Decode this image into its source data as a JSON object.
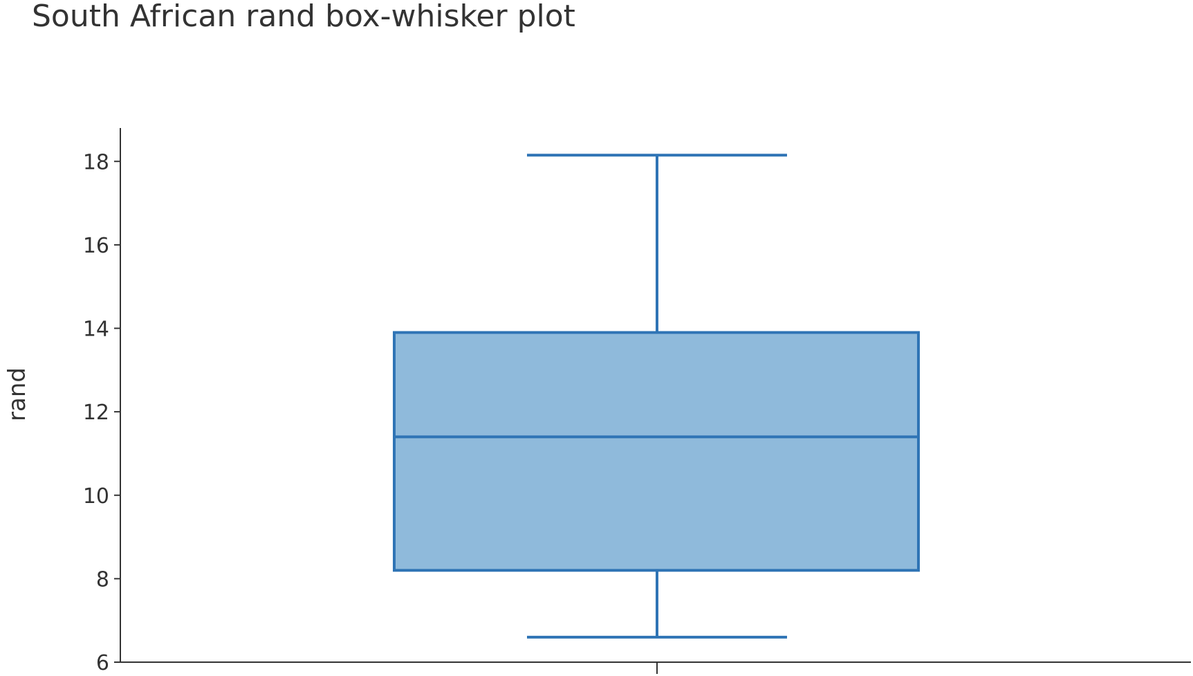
{
  "chart_data": {
    "type": "box",
    "title": "South African rand box-whisker plot",
    "xlabel": "",
    "ylabel": "rand",
    "ylim": [
      6,
      18.8
    ],
    "yticks": [
      6,
      8,
      10,
      12,
      14,
      16,
      18
    ],
    "grid": false,
    "legend": "none",
    "series": [
      {
        "min": 6.6,
        "q1": 8.2,
        "median": 11.4,
        "q3": 13.9,
        "max": 18.15
      }
    ],
    "colors": {
      "line": "#2f74b5",
      "fill": "#8fbadb",
      "axis": "#333333"
    }
  }
}
